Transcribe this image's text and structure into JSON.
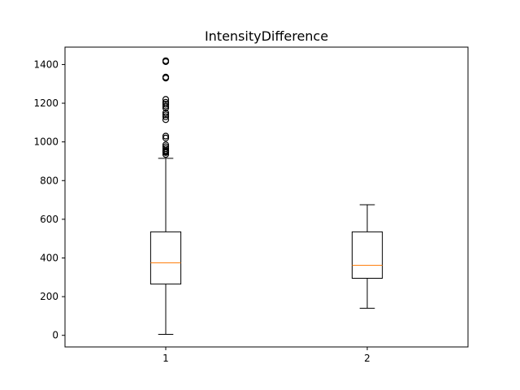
{
  "chart_data": {
    "type": "box",
    "title": "IntensityDifference",
    "xlabel": "",
    "ylabel": "",
    "categories": [
      "1",
      "2"
    ],
    "ylim": [
      -60,
      1490
    ],
    "yticks": [
      0,
      200,
      400,
      600,
      800,
      1000,
      1200,
      1400
    ],
    "grid": false,
    "colors": {
      "box": "#000000",
      "median": "#ff7f0e",
      "flier": "#000000",
      "background": "#ffffff"
    },
    "boxes": [
      {
        "label": "1",
        "whisker_low": 5,
        "q1": 265,
        "median": 375,
        "q3": 535,
        "whisker_high": 915,
        "fliers": [
          935,
          945,
          950,
          955,
          965,
          975,
          985,
          1020,
          1030,
          1115,
          1130,
          1140,
          1150,
          1175,
          1185,
          1195,
          1205,
          1220,
          1330,
          1335,
          1415,
          1420
        ]
      },
      {
        "label": "2",
        "whisker_low": 140,
        "q1": 295,
        "median": 362,
        "q3": 535,
        "whisker_high": 675,
        "fliers": []
      }
    ]
  }
}
